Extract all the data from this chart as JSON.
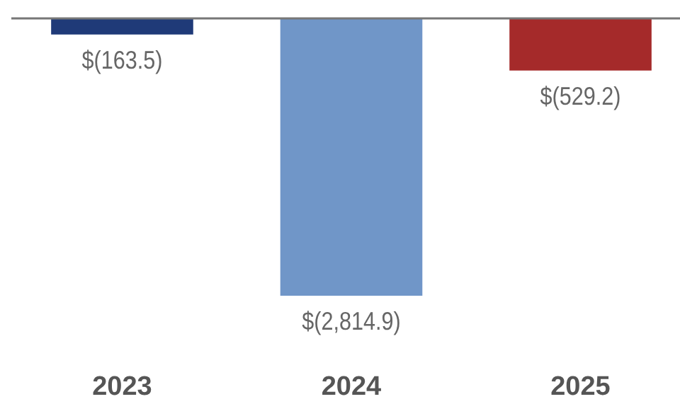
{
  "chart_data": {
    "type": "bar",
    "categories": [
      "2023",
      "2024",
      "2025"
    ],
    "values": [
      -163.5,
      -2814.9,
      -529.2
    ],
    "colors": [
      "#1f3a78",
      "#7096c8",
      "#a52a2a"
    ],
    "value_labels": [
      "$(163.5)",
      "$(2,814.9)",
      "$(529.2)"
    ]
  }
}
